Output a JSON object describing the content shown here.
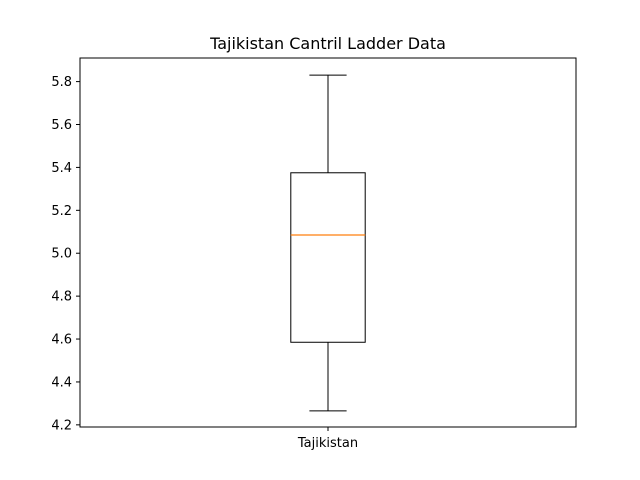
{
  "chart_data": {
    "type": "box",
    "title": "Tajikistan Cantril Ladder Data",
    "xlabel": "",
    "ylabel": "",
    "categories": [
      "Tajikistan"
    ],
    "ylim": [
      4.19,
      5.91
    ],
    "yticks": [
      "4.2",
      "4.4",
      "4.6",
      "4.8",
      "5.0",
      "5.2",
      "5.4",
      "5.6",
      "5.8"
    ],
    "boxes": [
      {
        "category": "Tajikistan",
        "whisker_low": 4.265,
        "q1": 4.585,
        "median": 5.085,
        "q3": 5.375,
        "whisker_high": 5.83
      }
    ],
    "grid": false,
    "colors": {
      "box": "#000000",
      "median": "#ff7f0e",
      "axes": "#000000"
    }
  }
}
